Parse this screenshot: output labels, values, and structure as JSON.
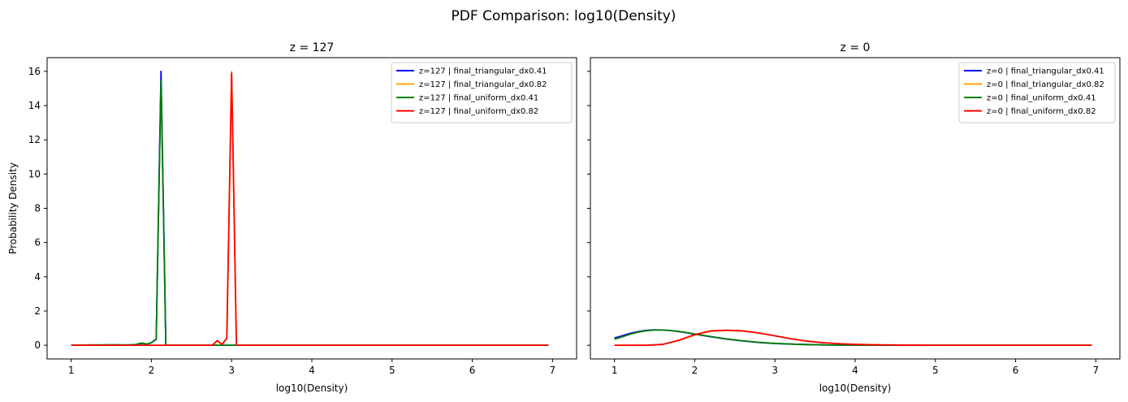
{
  "suptitle": "PDF Comparison: log10(Density)",
  "chart_data": [
    {
      "type": "line",
      "title": "z = 127",
      "xlabel": "log10(Density)",
      "ylabel": "Probability Density",
      "xlim": [
        0.7,
        7.3
      ],
      "ylim": [
        -0.8,
        16.8
      ],
      "xticks": [
        1,
        2,
        3,
        4,
        5,
        6,
        7
      ],
      "yticks": [
        0,
        2,
        4,
        6,
        8,
        10,
        12,
        14,
        16
      ],
      "grid": false,
      "legend_position": "top-right",
      "series": [
        {
          "name": "z=127 | final_triangular_dx0.41",
          "color": "#0000ff",
          "x": [
            1.0,
            1.8,
            1.88,
            1.94,
            2.0,
            2.06,
            2.12,
            2.18,
            2.24,
            6.95
          ],
          "y": [
            0,
            0,
            0.12,
            0.05,
            0.15,
            0.35,
            16.0,
            0,
            0,
            0
          ]
        },
        {
          "name": "z=127 | final_triangular_dx0.82",
          "color": "#ffa500",
          "x": [
            1.0,
            2.76,
            2.82,
            2.88,
            2.94,
            3.0,
            3.06,
            3.12,
            6.95
          ],
          "y": [
            0,
            0,
            0.25,
            0.05,
            0.4,
            16.0,
            0,
            0,
            0
          ]
        },
        {
          "name": "z=127 | final_uniform_dx0.41",
          "color": "#008000",
          "x": [
            1.0,
            1.3,
            1.5,
            1.7,
            1.8,
            1.88,
            1.94,
            2.0,
            2.06,
            2.12,
            2.18,
            2.24,
            6.95
          ],
          "y": [
            0,
            0.02,
            0.03,
            0.02,
            0.04,
            0.14,
            0.07,
            0.15,
            0.38,
            15.5,
            0,
            0,
            0
          ]
        },
        {
          "name": "z=127 | final_uniform_dx0.82",
          "color": "#ff0000",
          "x": [
            1.0,
            2.76,
            2.82,
            2.88,
            2.94,
            3.0,
            3.06,
            3.12,
            6.95
          ],
          "y": [
            0,
            0,
            0.27,
            0.05,
            0.42,
            15.9,
            0,
            0,
            0
          ]
        }
      ]
    },
    {
      "type": "line",
      "title": "z = 0",
      "xlabel": "log10(Density)",
      "ylabel": "",
      "xlim": [
        0.7,
        7.3
      ],
      "ylim": [
        -0.8,
        16.8
      ],
      "xticks": [
        1,
        2,
        3,
        4,
        5,
        6,
        7
      ],
      "yticks": [
        0,
        2,
        4,
        6,
        8,
        10,
        12,
        14,
        16
      ],
      "grid": false,
      "legend_position": "top-right",
      "series": [
        {
          "name": "z=0 | final_triangular_dx0.41",
          "color": "#0000ff",
          "x": [
            1.0,
            1.1,
            1.2,
            1.3,
            1.4,
            1.5,
            1.6,
            1.7,
            1.8,
            1.9,
            2.0,
            2.2,
            2.4,
            2.6,
            2.8,
            3.0,
            3.3,
            3.6,
            4.0,
            4.5,
            5.0,
            6.95
          ],
          "y": [
            0.42,
            0.56,
            0.7,
            0.8,
            0.87,
            0.9,
            0.89,
            0.86,
            0.8,
            0.73,
            0.65,
            0.5,
            0.36,
            0.25,
            0.16,
            0.1,
            0.05,
            0.02,
            0.0,
            0,
            0,
            0
          ]
        },
        {
          "name": "z=0 | final_triangular_dx0.82",
          "color": "#ffa500",
          "x": [
            1.0,
            1.4,
            1.6,
            1.8,
            2.0,
            2.2,
            2.4,
            2.6,
            2.8,
            3.0,
            3.2,
            3.4,
            3.6,
            3.8,
            4.0,
            4.3,
            4.6,
            5.0,
            6.95
          ],
          "y": [
            0,
            0,
            0.05,
            0.28,
            0.6,
            0.82,
            0.87,
            0.83,
            0.72,
            0.55,
            0.38,
            0.24,
            0.15,
            0.09,
            0.05,
            0.02,
            0.01,
            0,
            0
          ]
        },
        {
          "name": "z=0 | final_uniform_dx0.41",
          "color": "#008000",
          "x": [
            1.0,
            1.1,
            1.2,
            1.3,
            1.4,
            1.5,
            1.6,
            1.7,
            1.8,
            1.9,
            2.0,
            2.2,
            2.4,
            2.6,
            2.8,
            3.0,
            3.3,
            3.6,
            4.0,
            4.5,
            5.0,
            6.95
          ],
          "y": [
            0.35,
            0.5,
            0.65,
            0.77,
            0.85,
            0.89,
            0.89,
            0.86,
            0.81,
            0.74,
            0.66,
            0.51,
            0.37,
            0.26,
            0.17,
            0.11,
            0.05,
            0.02,
            0.0,
            0,
            0,
            0
          ]
        },
        {
          "name": "z=0 | final_uniform_dx0.82",
          "color": "#ff0000",
          "x": [
            1.0,
            1.4,
            1.6,
            1.8,
            2.0,
            2.2,
            2.4,
            2.6,
            2.8,
            3.0,
            3.2,
            3.4,
            3.6,
            3.8,
            4.0,
            4.3,
            4.6,
            5.0,
            6.95
          ],
          "y": [
            0,
            0,
            0.05,
            0.29,
            0.62,
            0.84,
            0.88,
            0.84,
            0.72,
            0.55,
            0.38,
            0.24,
            0.15,
            0.09,
            0.05,
            0.02,
            0.01,
            0,
            0
          ]
        }
      ]
    }
  ]
}
